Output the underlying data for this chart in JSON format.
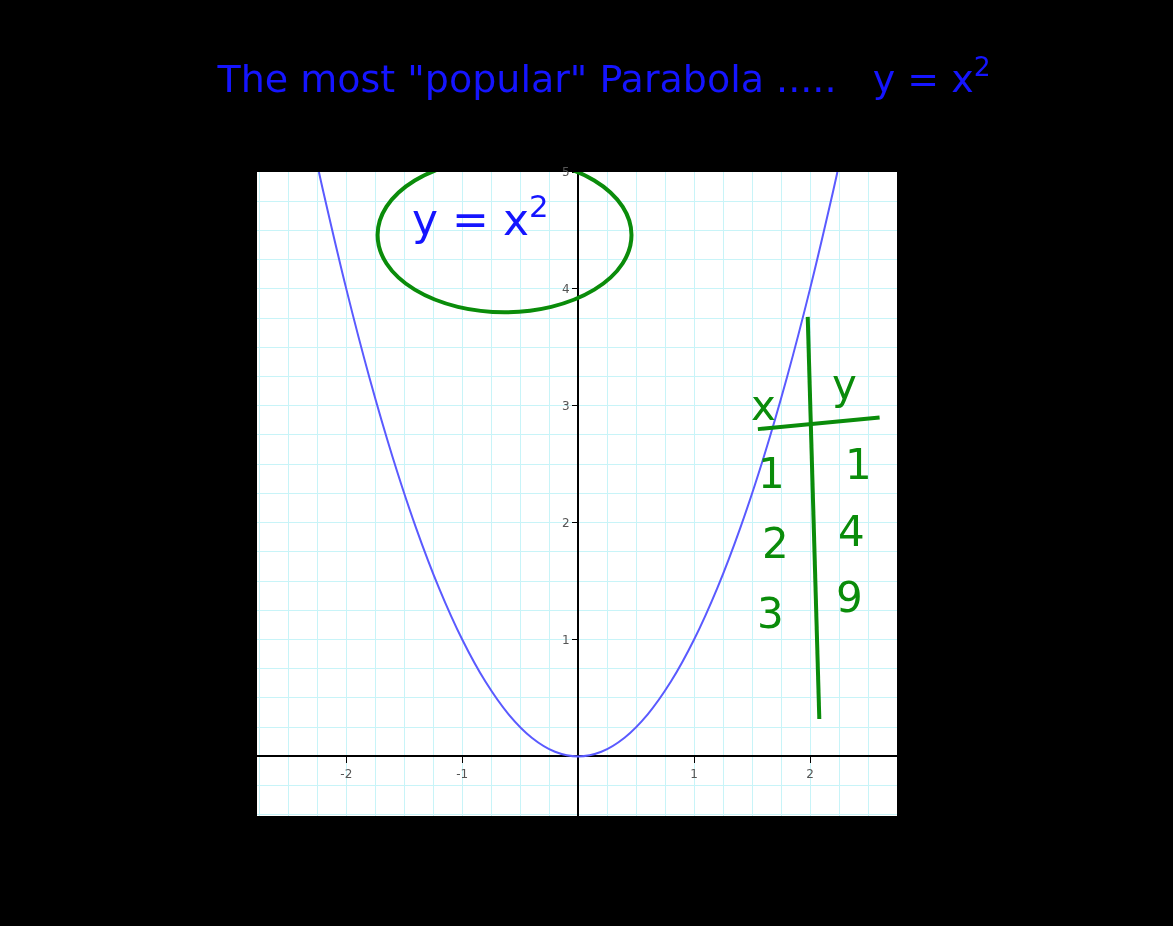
{
  "chart_data": {
    "type": "line",
    "title": "The most \"popular\" Parabola .....   y = x$^{2}$",
    "x": [
      -2.236,
      -2.2,
      -2.0,
      -1.8,
      -1.6,
      -1.4,
      -1.2,
      -1.0,
      -0.8,
      -0.6,
      -0.4,
      -0.2,
      0,
      0.2,
      0.4,
      0.6,
      0.8,
      1.0,
      1.2,
      1.4,
      1.6,
      1.8,
      2.0,
      2.2,
      2.236
    ],
    "values": [
      5.0,
      4.84,
      4.0,
      3.24,
      2.56,
      1.96,
      1.44,
      1.0,
      0.64,
      0.36,
      0.16,
      0.04,
      0,
      0.04,
      0.16,
      0.36,
      0.64,
      1.0,
      1.44,
      1.96,
      2.56,
      3.24,
      4.0,
      4.84,
      5.0
    ],
    "color": "#5a5aff",
    "xlim": [
      -2.77,
      2.75
    ],
    "ylim": [
      -0.51,
      5
    ],
    "xticks": [
      -2,
      -1,
      1,
      2
    ],
    "yticks": [
      1,
      2,
      3,
      4,
      5
    ],
    "grid": true,
    "annotations": [
      "y = x$^{2}$",
      "x",
      "y",
      "1",
      "1",
      "2",
      "4",
      "3",
      "9"
    ]
  }
}
